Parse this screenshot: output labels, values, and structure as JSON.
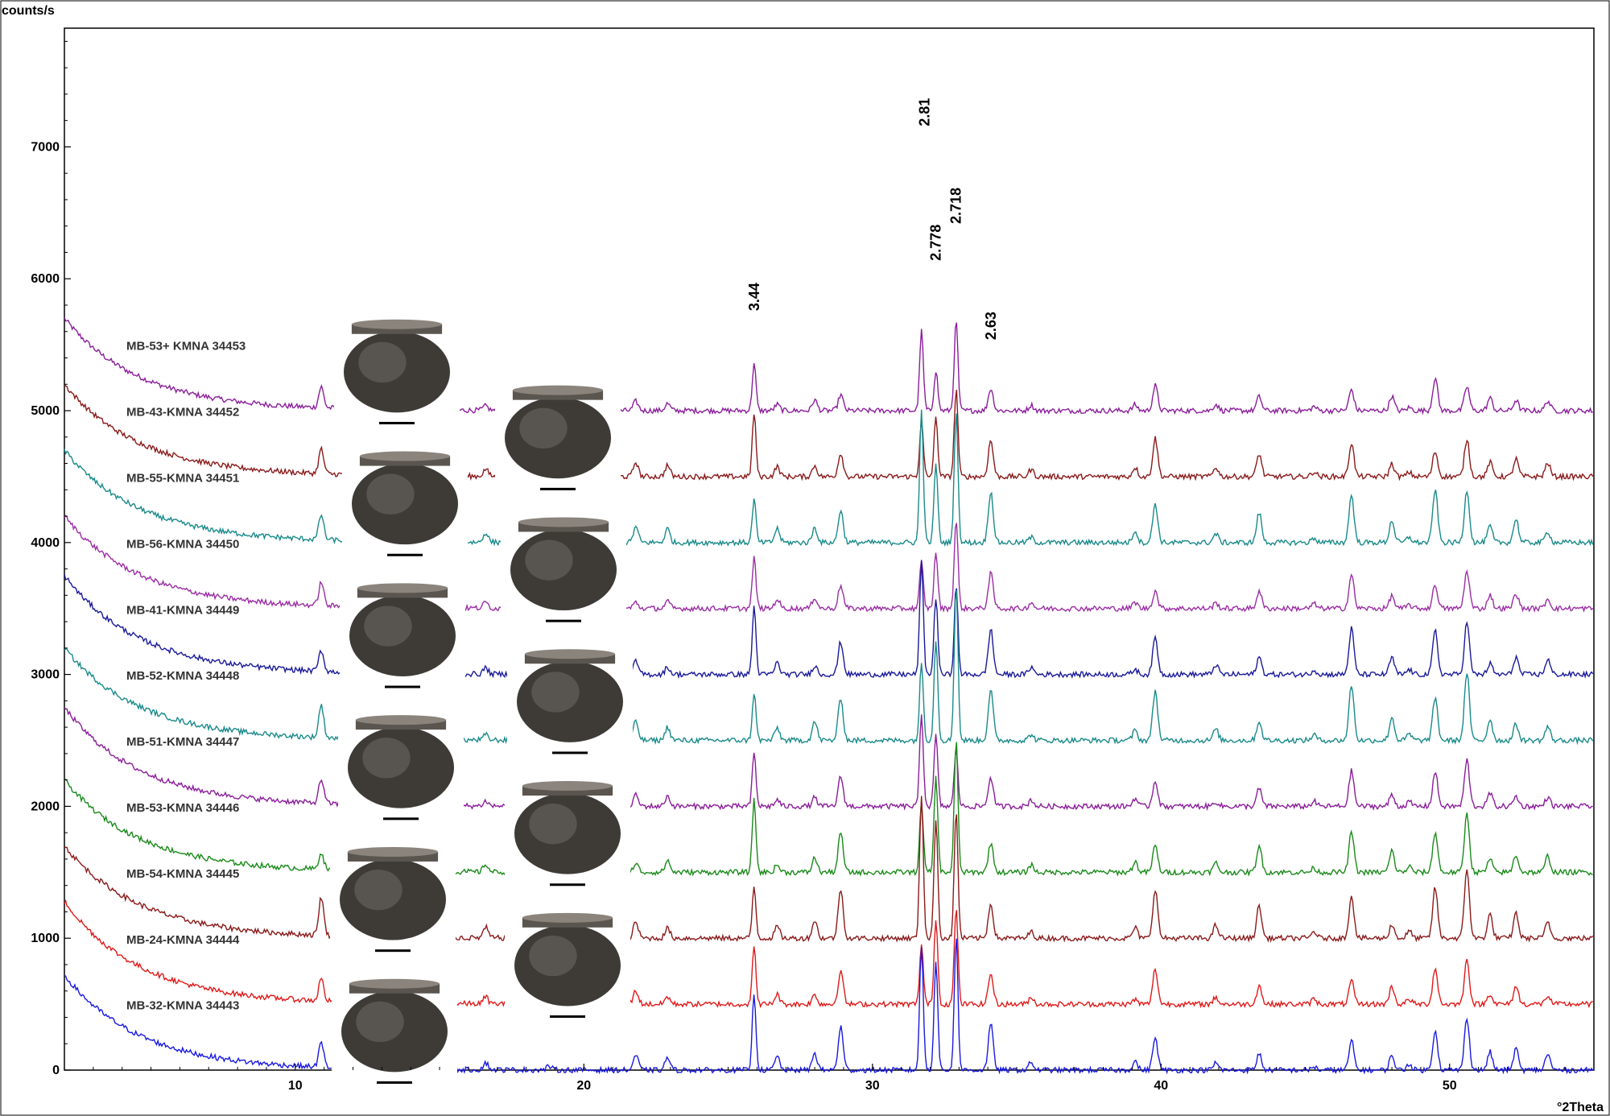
{
  "chart_data": {
    "type": "line",
    "ylabel": "counts/s",
    "xlabel": "°2Theta",
    "xlim": [
      2,
      55
    ],
    "ylim": [
      0,
      7900
    ],
    "x_ticks": [
      10,
      20,
      30,
      40,
      50
    ],
    "y_ticks": [
      0,
      1000,
      2000,
      3000,
      4000,
      5000,
      6000,
      7000
    ],
    "grid": false,
    "peak_labels": [
      {
        "text": "3.44",
        "x": 25.9,
        "y": 5720
      },
      {
        "text": "2.81",
        "x": 31.8,
        "y": 7120
      },
      {
        "text": "2.778",
        "x": 32.2,
        "y": 6100
      },
      {
        "text": "2.718",
        "x": 32.9,
        "y": 6380
      },
      {
        "text": "2.63",
        "x": 34.1,
        "y": 5500
      }
    ],
    "series": [
      {
        "name": "MB-53+ KMNA  34453",
        "color": "#8b1e9b",
        "baseline": 5000,
        "start": 5700
      },
      {
        "name": "MB-43-KMNA  34452",
        "color": "#8b1a1a",
        "baseline": 4500,
        "start": 5200
      },
      {
        "name": "MB-55-KMNA  34451",
        "color": "#1a8a8a",
        "baseline": 4000,
        "start": 4700
      },
      {
        "name": "MB-56-KMNA  34450",
        "color": "#9b2ea5",
        "baseline": 3500,
        "start": 4200
      },
      {
        "name": "MB-41-KMNA  34449",
        "color": "#1a1a9b",
        "baseline": 3000,
        "start": 3750
      },
      {
        "name": "MB-52-KMNA  34448",
        "color": "#1a8a8a",
        "baseline": 2500,
        "start": 3200
      },
      {
        "name": "MB-51-KMNA 34447",
        "color": "#8b1e9b",
        "baseline": 2000,
        "start": 2750
      },
      {
        "name": "MB-53-KMNA  34446",
        "color": "#1a8a1a",
        "baseline": 1500,
        "start": 2200
      },
      {
        "name": "MB-54-KMNA  34445",
        "color": "#8b1a1a",
        "baseline": 1000,
        "start": 1700
      },
      {
        "name": "MB-24-KMNA  34444",
        "color": "#e01a1a",
        "baseline": 500,
        "start": 1280
      },
      {
        "name": "MB-32-KMNA 34443",
        "color": "#1a1ae0",
        "baseline": 0,
        "start": 720
      }
    ],
    "peaks": [
      {
        "x": 10.9,
        "h": 300
      },
      {
        "x": 16.6,
        "h": 80
      },
      {
        "x": 18.8,
        "h": 40
      },
      {
        "x": 21.8,
        "h": 150
      },
      {
        "x": 22.9,
        "h": 120
      },
      {
        "x": 25.9,
        "h": 700
      },
      {
        "x": 26.7,
        "h": 120
      },
      {
        "x": 28.0,
        "h": 150
      },
      {
        "x": 28.9,
        "h": 380
      },
      {
        "x": 31.7,
        "h": 1100
      },
      {
        "x": 32.2,
        "h": 1000
      },
      {
        "x": 32.9,
        "h": 1250
      },
      {
        "x": 34.1,
        "h": 450
      },
      {
        "x": 35.5,
        "h": 80
      },
      {
        "x": 39.1,
        "h": 100
      },
      {
        "x": 39.8,
        "h": 400
      },
      {
        "x": 41.9,
        "h": 100
      },
      {
        "x": 43.4,
        "h": 250
      },
      {
        "x": 45.3,
        "h": 60
      },
      {
        "x": 46.6,
        "h": 450
      },
      {
        "x": 48.0,
        "h": 200
      },
      {
        "x": 48.6,
        "h": 80
      },
      {
        "x": 49.5,
        "h": 450
      },
      {
        "x": 50.6,
        "h": 550
      },
      {
        "x": 51.4,
        "h": 180
      },
      {
        "x": 52.3,
        "h": 200
      },
      {
        "x": 53.4,
        "h": 150
      }
    ]
  },
  "vessel_photos": [
    {
      "name": "vessel-34453"
    },
    {
      "name": "vessel-34452"
    },
    {
      "name": "vessel-34451"
    },
    {
      "name": "vessel-34450"
    },
    {
      "name": "vessel-34449"
    },
    {
      "name": "vessel-34448"
    },
    {
      "name": "vessel-34447"
    },
    {
      "name": "vessel-34446"
    },
    {
      "name": "vessel-34445"
    },
    {
      "name": "vessel-34444"
    },
    {
      "name": "vessel-34443"
    }
  ]
}
